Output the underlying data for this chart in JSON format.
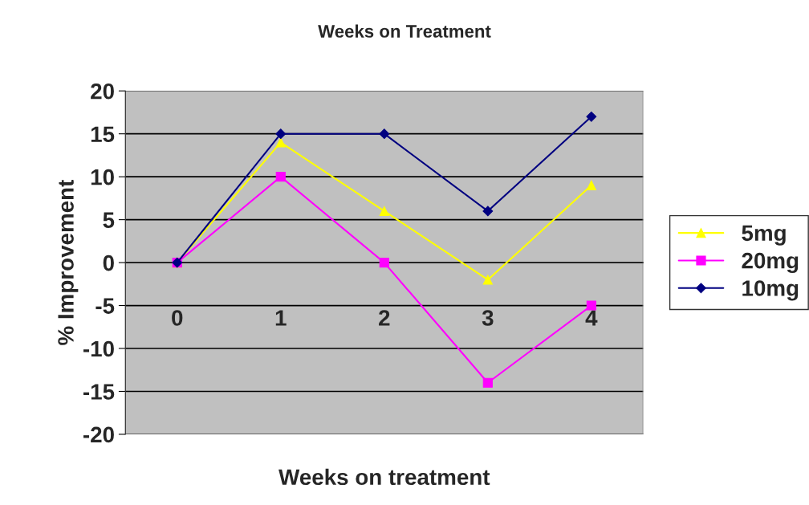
{
  "chart_data": {
    "type": "line",
    "title": "Weeks on Treatment",
    "xlabel": "Weeks on treatment",
    "ylabel": "% Improvement",
    "categories": [
      "0",
      "1",
      "2",
      "3",
      "4"
    ],
    "series": [
      {
        "name": "5mg",
        "color": "#ffff00",
        "marker": "triangle",
        "values": [
          0,
          14,
          6,
          -2,
          9
        ]
      },
      {
        "name": "20mg",
        "color": "#ff00ff",
        "marker": "square",
        "values": [
          0,
          10,
          0,
          -14,
          -5
        ]
      },
      {
        "name": "10mg",
        "color": "#000080",
        "marker": "diamond",
        "values": [
          0,
          15,
          15,
          6,
          17
        ]
      }
    ],
    "ylim": [
      -20,
      20
    ],
    "yticks": [
      -20,
      -15,
      -10,
      -5,
      0,
      5,
      10,
      15,
      20
    ],
    "grid": "y",
    "legend": "right",
    "line_style": "solid"
  }
}
